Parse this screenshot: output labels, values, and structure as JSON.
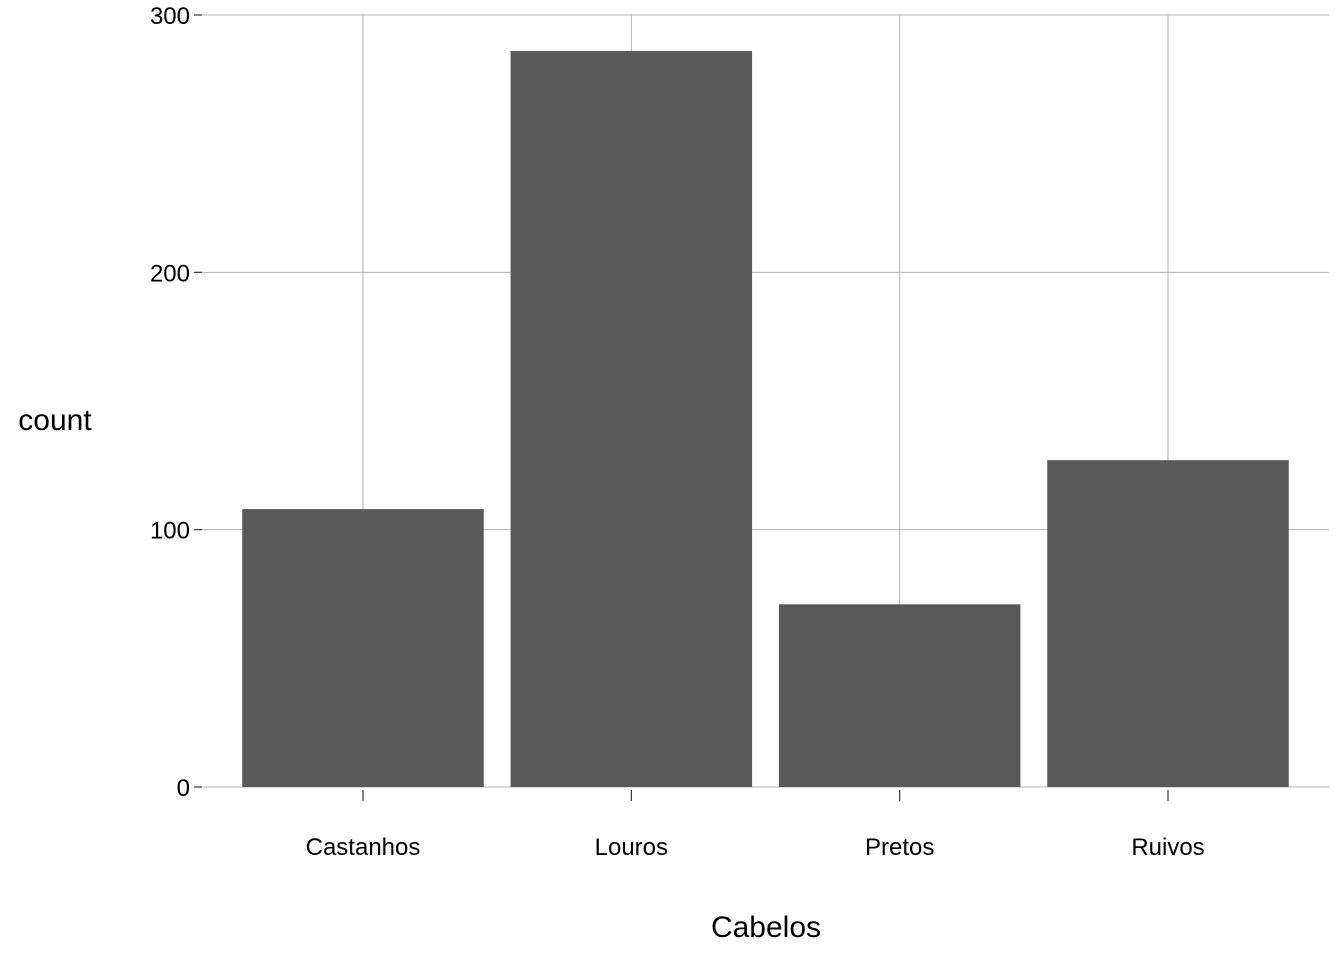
{
  "chart_data": {
    "type": "bar",
    "categories": [
      "Castanhos",
      "Louros",
      "Pretos",
      "Ruivos"
    ],
    "values": [
      108,
      286,
      71,
      127
    ],
    "xlabel": "Cabelos",
    "ylabel": "count",
    "ylim": [
      0,
      300
    ],
    "yticks": [
      0,
      100,
      200,
      300
    ],
    "yticklabels": [
      "0",
      "100",
      "200",
      "300"
    ],
    "grid": true,
    "legend": "none",
    "colors": {
      "bar": "#595959",
      "grid": "#b3b3b3",
      "axis_tick": "#333333",
      "text": "#000000",
      "background": "#ffffff"
    }
  }
}
